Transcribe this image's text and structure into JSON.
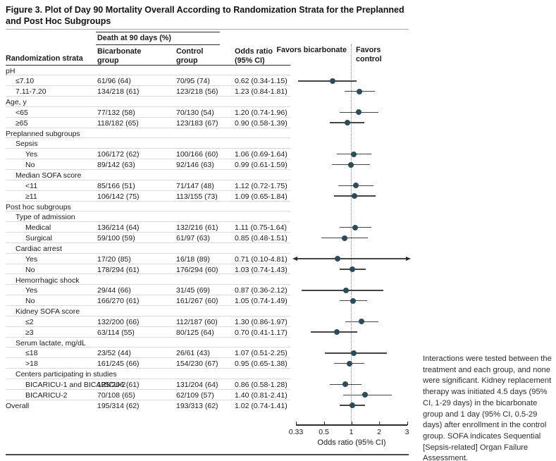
{
  "title": {
    "line1": "Figure 3. Plot of Day 90 Mortality Overall According to Randomization Strata for the Preplanned",
    "line2": "and Post Hoc Subgroups"
  },
  "table_header": {
    "strata": "Randomization strata",
    "spanner": "Death at 90 days (%)",
    "group1": "Bicarbonate group",
    "group2": "Control group",
    "odds": "Odds ratio (95% CI)"
  },
  "favors": {
    "left": "Favors bicarbonate",
    "right": "Favors control"
  },
  "axis": {
    "label": "Odds ratio (95% CI)"
  },
  "caption": "Interactions were tested between the treatment and each group, and none were significant. Kidney replacement therapy was initiated 4.5 days (95% CI, 1-29 days) in the bicarbonate group and 1 day (95% CI, 0.5-29 days) after enrollment in the control group. SOFA indicates Sequential [Sepsis-related] Organ Failure Assessment.",
  "colors": {
    "dot": "#2e4b59",
    "ci_line": "#454545",
    "rule_dark": "#2b2b2b",
    "row_rule": "#d9d9d9",
    "reference_line": "#8f8f8f"
  },
  "chart_data": {
    "type": "scatter",
    "subtype": "forest_plot",
    "title": "Day 90 mortality odds ratios by randomization strata",
    "xlabel": "Odds ratio (95% CI)",
    "x_scale": "log, tick marks equally spaced",
    "x_ticks": [
      "0.33",
      "0.5",
      "1",
      "2",
      "3"
    ],
    "x_tick_values": [
      0.33,
      0.5,
      1,
      2,
      3
    ],
    "xlim": [
      0.33,
      3
    ],
    "reference_line": 1,
    "rows": [
      {
        "label": "pH",
        "indent": 0,
        "kind": "header"
      },
      {
        "label": "≤7.10",
        "indent": 1,
        "kind": "data",
        "bicarbonate": "61/96 (64)",
        "control": "70/95 (74)",
        "or_text": "0.62 (0.34-1.15)",
        "or": 0.62,
        "lo": 0.34,
        "hi": 1.15
      },
      {
        "label": "7.11-7.20",
        "indent": 1,
        "kind": "data",
        "bicarbonate": "134/218 (61)",
        "control": "123/218 (56)",
        "or_text": "1.23 (0.84-1.81)",
        "or": 1.23,
        "lo": 0.84,
        "hi": 1.81
      },
      {
        "label": "Age, y",
        "indent": 0,
        "kind": "header"
      },
      {
        "label": "<65",
        "indent": 1,
        "kind": "data",
        "bicarbonate": "77/132 (58)",
        "control": "70/130 (54)",
        "or_text": "1.20 (0.74-1.96)",
        "or": 1.2,
        "lo": 0.74,
        "hi": 1.96
      },
      {
        "label": "≥65",
        "indent": 1,
        "kind": "data",
        "bicarbonate": "118/182 (65)",
        "control": "123/183 (67)",
        "or_text": "0.90 (0.58-1.39)",
        "or": 0.9,
        "lo": 0.58,
        "hi": 1.39
      },
      {
        "label": "Preplanned subgroups",
        "indent": 0,
        "kind": "header"
      },
      {
        "label": "Sepsis",
        "indent": 1,
        "kind": "header"
      },
      {
        "label": "Yes",
        "indent": 2,
        "kind": "data",
        "bicarbonate": "106/172 (62)",
        "control": "100/166 (60)",
        "or_text": "1.06 (0.69-1.64)",
        "or": 1.06,
        "lo": 0.69,
        "hi": 1.64
      },
      {
        "label": "No",
        "indent": 2,
        "kind": "data",
        "bicarbonate": "89/142 (63)",
        "control": "92/146 (63)",
        "or_text": "0.99 (0.61-1.59)",
        "or": 0.99,
        "lo": 0.61,
        "hi": 1.59
      },
      {
        "label": "Median SOFA score",
        "indent": 1,
        "kind": "header"
      },
      {
        "label": "<11",
        "indent": 2,
        "kind": "data",
        "bicarbonate": "85/166 (51)",
        "control": "71/147 (48)",
        "or_text": "1.12 (0.72-1.75)",
        "or": 1.12,
        "lo": 0.72,
        "hi": 1.75
      },
      {
        "label": "≥11",
        "indent": 2,
        "kind": "data",
        "bicarbonate": "106/142 (75)",
        "control": "113/155 (73)",
        "or_text": "1.09 (0.65-1.84)",
        "or": 1.09,
        "lo": 0.65,
        "hi": 1.84
      },
      {
        "label": "Post hoc subgroups",
        "indent": 0,
        "kind": "header"
      },
      {
        "label": "Type of admission",
        "indent": 1,
        "kind": "header"
      },
      {
        "label": "Medical",
        "indent": 2,
        "kind": "data",
        "bicarbonate": "136/214 (64)",
        "control": "132/216 (61)",
        "or_text": "1.11 (0.75-1.64)",
        "or": 1.11,
        "lo": 0.75,
        "hi": 1.64
      },
      {
        "label": "Surgical",
        "indent": 2,
        "kind": "data",
        "bicarbonate": "59/100 (59)",
        "control": "61/97 (63)",
        "or_text": "0.85 (0.48-1.51)",
        "or": 0.85,
        "lo": 0.48,
        "hi": 1.51
      },
      {
        "label": "Cardiac arrest",
        "indent": 1,
        "kind": "header"
      },
      {
        "label": "Yes",
        "indent": 2,
        "kind": "data",
        "bicarbonate": "17/20 (85)",
        "control": "16/18 (89)",
        "or_text": "0.71 (0.10-4.81)",
        "or": 0.71,
        "lo": 0.1,
        "hi": 4.81
      },
      {
        "label": "No",
        "indent": 2,
        "kind": "data",
        "bicarbonate": "178/294 (61)",
        "control": "176/294 (60)",
        "or_text": "1.03 (0.74-1.43)",
        "or": 1.03,
        "lo": 0.74,
        "hi": 1.43
      },
      {
        "label": "Hemorrhagic shock",
        "indent": 1,
        "kind": "header"
      },
      {
        "label": "Yes",
        "indent": 2,
        "kind": "data",
        "bicarbonate": "29/44 (66)",
        "control": "31/45 (69)",
        "or_text": "0.87 (0.36-2.12)",
        "or": 0.87,
        "lo": 0.36,
        "hi": 2.12
      },
      {
        "label": "No",
        "indent": 2,
        "kind": "data",
        "bicarbonate": "166/270 (61)",
        "control": "161/267 (60)",
        "or_text": "1.05 (0.74-1.49)",
        "or": 1.05,
        "lo": 0.74,
        "hi": 1.49
      },
      {
        "label": "Kidney SOFA score",
        "indent": 1,
        "kind": "header"
      },
      {
        "label": "≤2",
        "indent": 2,
        "kind": "data",
        "bicarbonate": "132/200 (66)",
        "control": "112/187 (60)",
        "or_text": "1.30 (0.86-1.97)",
        "or": 1.3,
        "lo": 0.86,
        "hi": 1.97
      },
      {
        "label": "≥3",
        "indent": 2,
        "kind": "data",
        "bicarbonate": "63/114 (55)",
        "control": "80/125 (64)",
        "or_text": "0.70 (0.41-1.17)",
        "or": 0.7,
        "lo": 0.41,
        "hi": 1.17
      },
      {
        "label": "Serum lactate, mg/dL",
        "indent": 1,
        "kind": "header"
      },
      {
        "label": "≤18",
        "indent": 2,
        "kind": "data",
        "bicarbonate": "23/52 (44)",
        "control": "26/61 (43)",
        "or_text": "1.07 (0.51-2.25)",
        "or": 1.07,
        "lo": 0.51,
        "hi": 2.25
      },
      {
        "label": ">18",
        "indent": 2,
        "kind": "data",
        "bicarbonate": "161/245 (66)",
        "control": "154/230 (67)",
        "or_text": "0.95 (0.65-1.38)",
        "or": 0.95,
        "lo": 0.65,
        "hi": 1.38
      },
      {
        "label": "Centers participating in studies",
        "indent": 1,
        "kind": "header"
      },
      {
        "label": "BICARICU-1 and BICARICU-2",
        "indent": 2,
        "kind": "data",
        "bicarbonate": "125/206 (61)",
        "control": "131/204 (64)",
        "or_text": "0.86 (0.58-1.28)",
        "or": 0.86,
        "lo": 0.58,
        "hi": 1.28
      },
      {
        "label": "BICARICU-2",
        "indent": 2,
        "kind": "data",
        "bicarbonate": "70/108 (65)",
        "control": "62/109 (57)",
        "or_text": "1.40 (0.81-2.41)",
        "or": 1.4,
        "lo": 0.81,
        "hi": 2.41
      },
      {
        "label": "Overall",
        "indent": 0,
        "kind": "data",
        "bicarbonate": "195/314 (62)",
        "control": "193/313 (62)",
        "or_text": "1.02 (0.74-1.41)",
        "or": 1.02,
        "lo": 0.74,
        "hi": 1.41
      }
    ]
  }
}
